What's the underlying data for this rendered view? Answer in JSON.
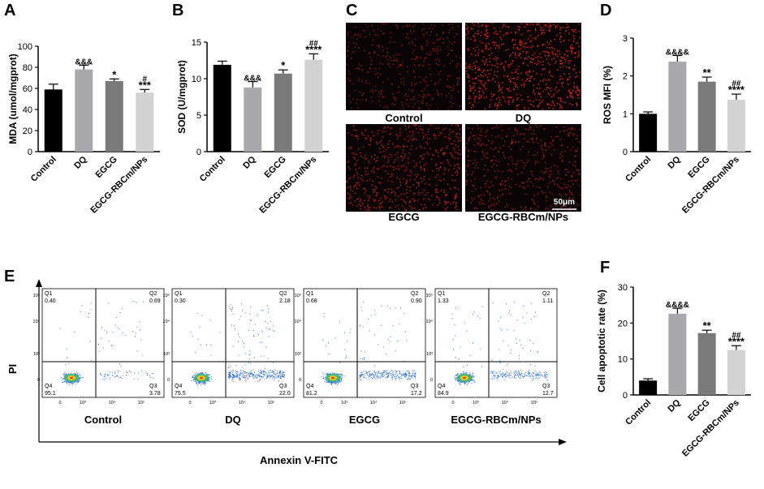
{
  "panel_letters": [
    "A",
    "B",
    "C",
    "D",
    "E",
    "F"
  ],
  "colors": {
    "control": "#000000",
    "dq": "#a8a8ad",
    "egcg": "#7a7a7a",
    "egcg_rbcm": "#d2d2d2",
    "fluorescence": "#e0281e",
    "dot_blue": "#2a6fd6",
    "dot_core": "#f2c91b"
  },
  "chart_data": [
    {
      "panel": "A",
      "type": "bar",
      "categories": [
        "Control",
        "DQ",
        "EGCG",
        "EGCG-RBCm/NPs"
      ],
      "values": [
        59,
        78,
        67,
        56
      ],
      "errors": [
        5,
        4,
        2,
        3
      ],
      "annotations": [
        [],
        [
          "&&&"
        ],
        [
          "*"
        ],
        [
          "#",
          "***"
        ]
      ],
      "ylabel": "MDA (umol/mgprot)",
      "ylim": [
        0,
        100
      ],
      "yticks": [
        "0",
        "20",
        "40",
        "60",
        "80",
        "100"
      ],
      "ytick_values": [
        0,
        20,
        40,
        60,
        80,
        100
      ]
    },
    {
      "panel": "B",
      "type": "bar",
      "categories": [
        "Control",
        "DQ",
        "EGCG",
        "EGCG-RBCm/NPs"
      ],
      "values": [
        11.9,
        8.8,
        10.7,
        12.6
      ],
      "errors": [
        0.5,
        0.8,
        0.5,
        0.8
      ],
      "annotations": [
        [],
        [
          "&&&"
        ],
        [
          "*"
        ],
        [
          "##",
          "****"
        ]
      ],
      "ylabel": "SOD (U/mgprot)",
      "ylim": [
        0,
        15
      ],
      "yticks": [
        "0",
        "5",
        "10",
        "15"
      ],
      "ytick_values": [
        0,
        5,
        10,
        15
      ]
    },
    {
      "panel": "D",
      "type": "bar",
      "categories": [
        "Control",
        "DQ",
        "EGCG",
        "EGCG-RBCm/NPs"
      ],
      "values": [
        1.0,
        2.38,
        1.85,
        1.37
      ],
      "errors": [
        0.05,
        0.16,
        0.12,
        0.15
      ],
      "annotations": [
        [],
        [
          "&&&&"
        ],
        [
          "**"
        ],
        [
          "##",
          "****"
        ]
      ],
      "ylabel": "ROS MFI (%)",
      "ylim": [
        0,
        3
      ],
      "yticks": [
        "0",
        "1",
        "2",
        "3"
      ],
      "ytick_values": [
        0,
        1,
        2,
        3
      ]
    },
    {
      "panel": "F",
      "type": "bar",
      "categories": [
        "Control",
        "DQ",
        "EGCG",
        "EGCG-RBCm/NPs"
      ],
      "values": [
        4.0,
        22.6,
        17.2,
        12.5
      ],
      "errors": [
        0.5,
        1.5,
        0.8,
        1.2
      ],
      "annotations": [
        [],
        [
          "&&&&"
        ],
        [
          "**"
        ],
        [
          "##",
          "****"
        ]
      ],
      "ylabel": "Cell apoptotic rate (%)",
      "ylim": [
        0,
        30
      ],
      "yticks": [
        "0",
        "10",
        "20",
        "30"
      ],
      "ytick_values": [
        0,
        10,
        20,
        30
      ]
    }
  ],
  "microscopy": {
    "panel": "C",
    "images": [
      {
        "label": "Control",
        "intensity": 0.25
      },
      {
        "label": "DQ",
        "intensity": 0.85
      },
      {
        "label": "EGCG",
        "intensity": 0.6
      },
      {
        "label": "EGCG-RBCm/NPs",
        "intensity": 0.4
      }
    ],
    "scale_bar": "50μm"
  },
  "flow_cytometry": {
    "panel": "E",
    "y_axis_label": "PI",
    "x_axis_label": "Annexin V-FITC",
    "tick_labels": {
      "x": [
        "0",
        "10³",
        "10⁴",
        "10⁵"
      ],
      "y": [
        "0",
        "10³",
        "10⁴",
        "10⁵"
      ]
    },
    "plots": [
      {
        "label": "Control",
        "q1": "0.40",
        "q2": "0.69",
        "q3": "3.78",
        "q4": "95.1"
      },
      {
        "label": "DQ",
        "q1": "0.30",
        "q2": "2.18",
        "q3": "22.0",
        "q4": "75.5"
      },
      {
        "label": "EGCG",
        "q1": "0.68",
        "q2": "0.90",
        "q3": "17.2",
        "q4": "81.2"
      },
      {
        "label": "EGCG-RBCm/NPs",
        "q1": "1.33",
        "q2": "1.11",
        "q3": "12.7",
        "q4": "84.9"
      }
    ],
    "quadrant_names": [
      "Q1",
      "Q2",
      "Q3",
      "Q4"
    ]
  }
}
